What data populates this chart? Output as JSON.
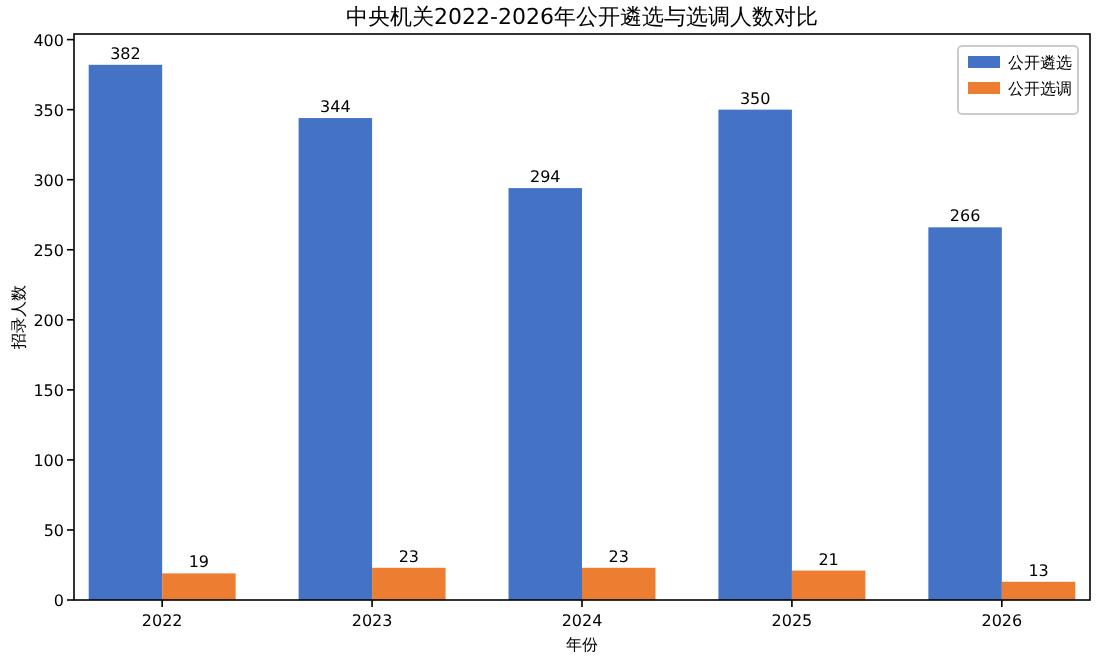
{
  "chart_data": {
    "type": "bar",
    "title": "中央机关2022-2026年公开遴选与选调人数对比",
    "xlabel": "年份",
    "ylabel": "招录人数",
    "categories": [
      "2022",
      "2023",
      "2024",
      "2025",
      "2026"
    ],
    "series": [
      {
        "name": "公开遴选",
        "color": "#4472c4",
        "values": [
          382,
          344,
          294,
          350,
          266
        ]
      },
      {
        "name": "公开选调",
        "color": "#ed7d31",
        "values": [
          19,
          23,
          23,
          21,
          13
        ]
      }
    ],
    "ylim": [
      0,
      404
    ],
    "yticks": [
      0,
      50,
      100,
      150,
      200,
      250,
      300,
      350,
      400
    ],
    "data_labels": true,
    "legend": "top right",
    "grid": false
  }
}
